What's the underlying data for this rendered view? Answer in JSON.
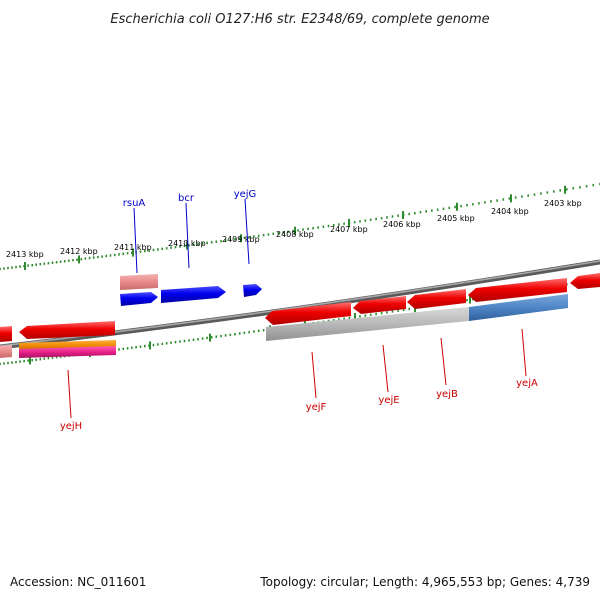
{
  "title": "Escherichia coli O127:H6 str. E2348/69, complete genome",
  "footer": {
    "accession": "Accession: NC_011601",
    "topology": "Topology: circular; Length: 4,965,553 bp; Genes: 4,739"
  },
  "colors": {
    "backbone": "#7a7a7a",
    "ticks": "#2e8b2e",
    "forward_gene": "#0000ee",
    "reverse_gene": "#ee0000",
    "forward_label": "#0000cc",
    "reverse_label": "#cc0000",
    "pink_feature": "#e88a8a",
    "gray_feature": "#b8b8b8",
    "steel_feature": "#4f86c6",
    "orange_feature": "#f08a00",
    "magenta_feature": "#e8208a"
  },
  "kbp_labels": [
    "2413 kbp",
    "2412 kbp",
    "2411 kbp",
    "2410 kbp",
    "2409 kbp",
    "2408 kbp",
    "2407 kbp",
    "2406 kbp",
    "2405 kbp",
    "2404 kbp",
    "2403 kbp"
  ],
  "genes_forward": [
    "rsuA",
    "bcr",
    "yejG"
  ],
  "genes_reverse": [
    "yejH",
    "yejF",
    "yejE",
    "yejB",
    "yejA"
  ]
}
